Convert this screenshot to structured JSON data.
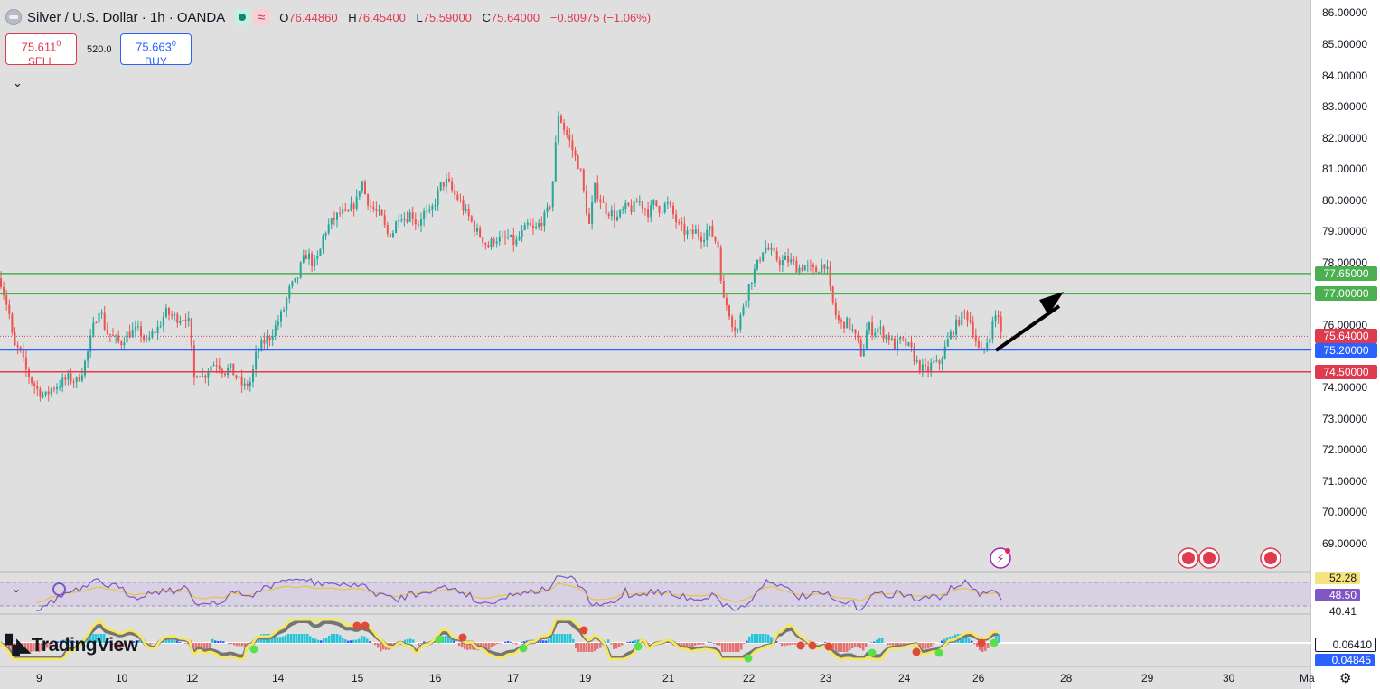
{
  "header": {
    "title": "Silver / U.S. Dollar · 1h · OANDA",
    "o_label": "O",
    "o_value": "76.44860",
    "h_label": "H",
    "h_value": "76.45400",
    "l_label": "L",
    "l_value": "75.59000",
    "c_label": "C",
    "c_value": "75.64000",
    "change": "−0.80975 (−1.06%)",
    "wave_icon": "≈"
  },
  "trade": {
    "sell_price": "75.611",
    "sell_price_sup": "0",
    "sell_label": "SELL",
    "spread": "520.0",
    "buy_price": "75.663",
    "buy_price_sup": "0",
    "buy_label": "BUY"
  },
  "price_scale": {
    "labels": [
      "86.00000",
      "85.00000",
      "84.00000",
      "83.00000",
      "82.00000",
      "81.00000",
      "80.00000",
      "79.00000",
      "78.00000",
      "76.00000",
      "74.00000",
      "73.00000",
      "72.00000",
      "71.00000",
      "70.00000",
      "69.00000"
    ],
    "values": [
      86,
      85,
      84,
      83,
      82,
      81,
      80,
      79,
      78,
      76,
      74,
      73,
      72,
      71,
      70,
      69
    ],
    "ymin": 68.6,
    "ymax": 86.2
  },
  "levels": [
    {
      "value": 77.65,
      "label": "77.65000",
      "color": "#4caf50",
      "style": "solid"
    },
    {
      "value": 77.0,
      "label": "77.00000",
      "color": "#4caf50",
      "style": "solid"
    },
    {
      "value": 75.64,
      "label": "75.64000",
      "color": "#e03a4e",
      "style": "dotted"
    },
    {
      "value": 75.2,
      "label": "75.20000",
      "color": "#2962ff",
      "style": "solid"
    },
    {
      "value": 74.5,
      "label": "74.50000",
      "color": "#e03a4e",
      "style": "solid"
    }
  ],
  "x_axis": {
    "labels": [
      "9",
      "10",
      "12",
      "14",
      "15",
      "16",
      "17",
      "19",
      "21",
      "22",
      "23",
      "24",
      "26",
      "28",
      "29",
      "30",
      "Ma"
    ],
    "note": "dates shown on time axis"
  },
  "rsi": {
    "upper_label": "52.28",
    "current_label": "48.50",
    "lower_label": "40.41",
    "colors": {
      "line": "#7e57c2",
      "signal": "#e8c440",
      "band": "#cfc5e6"
    }
  },
  "macd": {
    "value_1": "0.06410",
    "value_2": "0.04845"
  },
  "brand": {
    "name": "TradingView"
  },
  "colors": {
    "up": "#26a69a",
    "down": "#ef5350",
    "background": "#dfdfdf",
    "arrow": "#000000"
  },
  "chart_data": {
    "type": "candlestick",
    "title": "Silver / U.S. Dollar · 1h · OANDA",
    "ylim": [
      68.6,
      86.2
    ],
    "x_labels": [
      "9",
      "10",
      "12",
      "14",
      "15",
      "16",
      "17",
      "19",
      "21",
      "22",
      "23",
      "24",
      "26",
      "28",
      "29",
      "30",
      "Ma"
    ],
    "path": [
      [
        0,
        77.5
      ],
      [
        10,
        76.4
      ],
      [
        15,
        75.3
      ],
      [
        22,
        75.2
      ],
      [
        28,
        74.6
      ],
      [
        35,
        74.2
      ],
      [
        42,
        73.9
      ],
      [
        50,
        73.7
      ],
      [
        58,
        74.0
      ],
      [
        66,
        74.1
      ],
      [
        75,
        74.3
      ],
      [
        85,
        74.2
      ],
      [
        92,
        74.6
      ],
      [
        97,
        75.1
      ],
      [
        103,
        75.9
      ],
      [
        110,
        76.6
      ],
      [
        117,
        75.8
      ],
      [
        125,
        75.6
      ],
      [
        133,
        75.4
      ],
      [
        140,
        75.7
      ],
      [
        148,
        75.8
      ],
      [
        155,
        75.8
      ],
      [
        162,
        75.4
      ],
      [
        168,
        75.7
      ],
      [
        175,
        75.9
      ],
      [
        183,
        76.4
      ],
      [
        190,
        76.3
      ],
      [
        198,
        76.2
      ],
      [
        205,
        76.3
      ],
      [
        210,
        76.0
      ],
      [
        214,
        74.2
      ],
      [
        219,
        74.6
      ],
      [
        225,
        74.3
      ],
      [
        232,
        74.7
      ],
      [
        240,
        74.8
      ],
      [
        248,
        74.5
      ],
      [
        255,
        74.6
      ],
      [
        262,
        74.3
      ],
      [
        270,
        74.0
      ],
      [
        278,
        74.2
      ],
      [
        283,
        75.0
      ],
      [
        290,
        75.4
      ],
      [
        298,
        75.6
      ],
      [
        306,
        76.0
      ],
      [
        314,
        76.5
      ],
      [
        321,
        77.2
      ],
      [
        328,
        77.4
      ],
      [
        334,
        78.0
      ],
      [
        340,
        78.3
      ],
      [
        347,
        77.9
      ],
      [
        353,
        78.2
      ],
      [
        358,
        78.9
      ],
      [
        364,
        79.2
      ],
      [
        370,
        79.4
      ],
      [
        377,
        79.6
      ],
      [
        384,
        79.5
      ],
      [
        390,
        79.8
      ],
      [
        395,
        80.0
      ],
      [
        400,
        80.7
      ],
      [
        404,
        80.2
      ],
      [
        410,
        79.8
      ],
      [
        417,
        79.6
      ],
      [
        423,
        79.4
      ],
      [
        428,
        78.9
      ],
      [
        435,
        79.0
      ],
      [
        442,
        79.6
      ],
      [
        448,
        79.4
      ],
      [
        455,
        79.6
      ],
      [
        462,
        79.2
      ],
      [
        468,
        79.6
      ],
      [
        475,
        79.5
      ],
      [
        482,
        80.0
      ],
      [
        488,
        80.5
      ],
      [
        495,
        80.6
      ],
      [
        502,
        80.2
      ],
      [
        508,
        80.0
      ],
      [
        515,
        79.6
      ],
      [
        520,
        79.4
      ],
      [
        527,
        79.0
      ],
      [
        533,
        78.8
      ],
      [
        540,
        78.5
      ],
      [
        548,
        78.8
      ],
      [
        555,
        78.7
      ],
      [
        562,
        78.8
      ],
      [
        570,
        78.6
      ],
      [
        577,
        78.9
      ],
      [
        584,
        79.2
      ],
      [
        591,
        79.0
      ],
      [
        598,
        79.3
      ],
      [
        604,
        79.5
      ],
      [
        610,
        80.0
      ],
      [
        614,
        81.5
      ],
      [
        618,
        82.8
      ],
      [
        624,
        82.3
      ],
      [
        630,
        81.9
      ],
      [
        636,
        81.4
      ],
      [
        642,
        81.0
      ],
      [
        647,
        80.0
      ],
      [
        652,
        79.2
      ],
      [
        658,
        80.4
      ],
      [
        663,
        80.1
      ],
      [
        670,
        79.7
      ],
      [
        676,
        79.6
      ],
      [
        682,
        79.4
      ],
      [
        688,
        79.6
      ],
      [
        694,
        79.8
      ],
      [
        700,
        79.7
      ],
      [
        706,
        80.0
      ],
      [
        712,
        79.8
      ],
      [
        718,
        79.6
      ],
      [
        724,
        79.9
      ],
      [
        731,
        79.7
      ],
      [
        738,
        79.9
      ],
      [
        744,
        79.6
      ],
      [
        750,
        79.2
      ],
      [
        757,
        79.0
      ],
      [
        764,
        78.9
      ],
      [
        770,
        79.0
      ],
      [
        777,
        78.8
      ],
      [
        784,
        79.1
      ],
      [
        790,
        78.8
      ],
      [
        795,
        78.5
      ],
      [
        800,
        76.8
      ],
      [
        805,
        76.6
      ],
      [
        810,
        76.1
      ],
      [
        816,
        75.8
      ],
      [
        822,
        76.6
      ],
      [
        828,
        77.2
      ],
      [
        833,
        77.6
      ],
      [
        839,
        78.0
      ],
      [
        845,
        78.5
      ],
      [
        851,
        78.4
      ],
      [
        857,
        78.2
      ],
      [
        864,
        78.0
      ],
      [
        870,
        78.1
      ],
      [
        877,
        78.0
      ],
      [
        883,
        77.8
      ],
      [
        890,
        77.9
      ],
      [
        896,
        77.8
      ],
      [
        902,
        77.7
      ],
      [
        908,
        77.9
      ],
      [
        914,
        78.0
      ],
      [
        919,
        77.0
      ],
      [
        925,
        76.3
      ],
      [
        930,
        76.0
      ],
      [
        936,
        76.1
      ],
      [
        942,
        75.9
      ],
      [
        948,
        75.5
      ],
      [
        954,
        75.0
      ],
      [
        960,
        76.0
      ],
      [
        966,
        75.8
      ],
      [
        972,
        75.9
      ],
      [
        978,
        75.7
      ],
      [
        984,
        75.6
      ],
      [
        990,
        75.3
      ],
      [
        996,
        75.5
      ],
      [
        1002,
        75.4
      ],
      [
        1008,
        75.2
      ],
      [
        1014,
        74.8
      ],
      [
        1020,
        74.6
      ],
      [
        1026,
        74.5
      ],
      [
        1032,
        74.8
      ],
      [
        1038,
        74.7
      ],
      [
        1044,
        75.1
      ],
      [
        1050,
        75.6
      ],
      [
        1056,
        75.9
      ],
      [
        1062,
        76.2
      ],
      [
        1068,
        76.4
      ],
      [
        1074,
        76.1
      ],
      [
        1080,
        75.5
      ],
      [
        1085,
        75.0
      ],
      [
        1090,
        75.3
      ],
      [
        1095,
        75.7
      ],
      [
        1100,
        76.2
      ],
      [
        1104,
        76.45
      ],
      [
        1108,
        75.64
      ]
    ]
  }
}
